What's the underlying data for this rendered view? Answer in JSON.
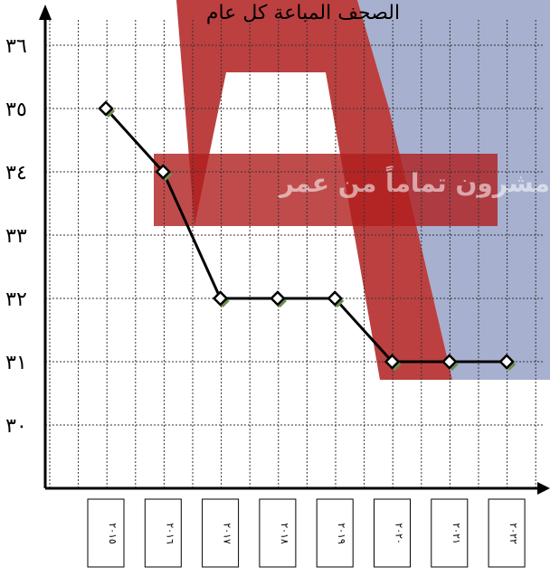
{
  "chart_data": {
    "type": "line",
    "title": "الصحف المباعة كل عام",
    "xlabel": "",
    "ylabel": "",
    "categories": [
      "٢٠١٥",
      "٢٠١٦",
      "٢٠١٧",
      "٢٠١٨",
      "٢٠١٩",
      "٢٠٢٠",
      "٢٠٢١",
      "٢٠٢٢"
    ],
    "series": [
      {
        "values": [
          35,
          34,
          32,
          32,
          32,
          31,
          31,
          31
        ]
      }
    ],
    "y_tick_labels": [
      "٣٠",
      "٣١",
      "٣٢",
      "٣٣",
      "٣٤",
      "٣٥",
      "٣٦"
    ],
    "y_tick_values": [
      30,
      31,
      32,
      33,
      34,
      35,
      36
    ],
    "ylim": [
      29,
      36.5
    ],
    "grid": true,
    "line_color": "#000000",
    "marker_fill": "#ffffff",
    "marker_shadow": "#6b8e4e",
    "watermark_text": "مشرون تماماً من عمر",
    "watermark_colors": [
      "#b01e1e",
      "#5e6fa8"
    ]
  }
}
